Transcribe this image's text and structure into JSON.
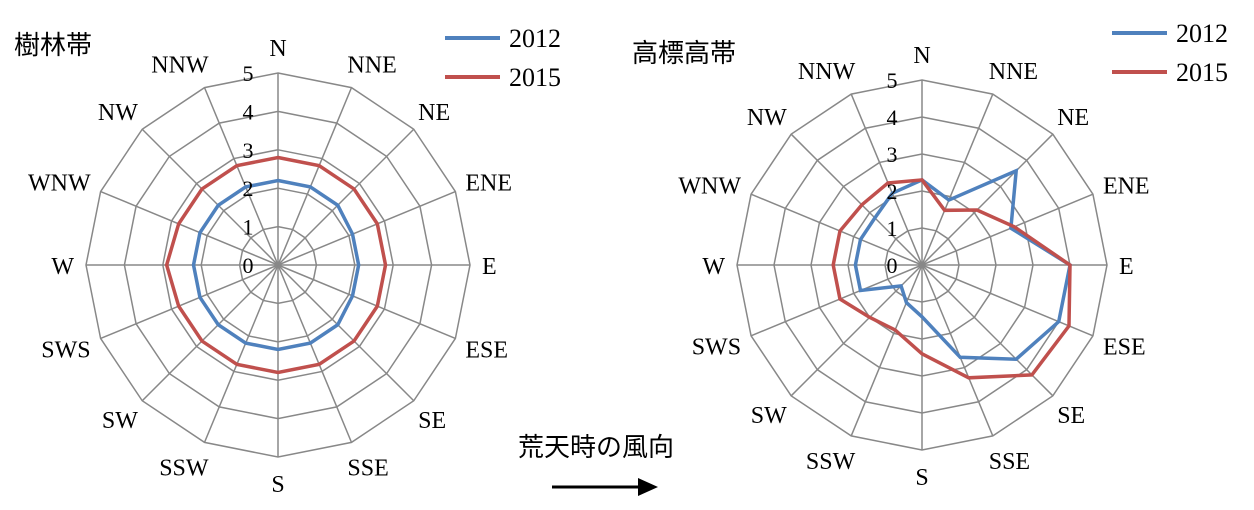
{
  "chart_data": [
    {
      "type": "radar",
      "title": "樹林帯",
      "directions": [
        "N",
        "NNE",
        "NE",
        "ENE",
        "E",
        "ESE",
        "SE",
        "SSE",
        "S",
        "SSW",
        "SW",
        "SWS",
        "W",
        "WNW",
        "NW",
        "NNW"
      ],
      "rlim": [
        0,
        5
      ],
      "ticks": [
        "0",
        "1",
        "2",
        "3",
        "4",
        "5"
      ],
      "legend_position": "top-right",
      "series": [
        {
          "name": "2012",
          "color": "#4F81BD",
          "values": [
            2.2,
            2.2,
            2.2,
            2.1,
            2.1,
            2.1,
            2.2,
            2.2,
            2.2,
            2.2,
            2.2,
            2.2,
            2.2,
            2.2,
            2.2,
            2.2
          ]
        },
        {
          "name": "2015",
          "color": "#C0504D",
          "values": [
            2.8,
            2.8,
            2.8,
            2.8,
            2.8,
            2.8,
            2.8,
            2.8,
            2.8,
            2.8,
            2.8,
            2.8,
            2.9,
            2.8,
            2.8,
            2.8
          ]
        }
      ]
    },
    {
      "type": "radar",
      "title": "高標高帯",
      "directions": [
        "N",
        "NNE",
        "NE",
        "ENE",
        "E",
        "ESE",
        "SE",
        "SSE",
        "S",
        "SSW",
        "SW",
        "SWS",
        "W",
        "WNW",
        "NW",
        "NNW"
      ],
      "rlim": [
        0,
        5
      ],
      "ticks": [
        "0",
        "1",
        "2",
        "3",
        "4",
        "5"
      ],
      "legend_position": "top-right",
      "series": [
        {
          "name": "2012",
          "color": "#4F81BD",
          "values": [
            2.3,
            1.9,
            3.6,
            2.6,
            4.0,
            4.0,
            3.6,
            2.7,
            1.4,
            1.1,
            0.8,
            1.8,
            1.8,
            1.8,
            1.8,
            2.1
          ]
        },
        {
          "name": "2015",
          "color": "#C0504D",
          "values": [
            2.3,
            1.6,
            2.1,
            2.7,
            4.0,
            4.3,
            4.2,
            3.3,
            2.4,
            1.9,
            2.0,
            2.4,
            2.4,
            2.4,
            2.3,
            2.4
          ]
        }
      ]
    }
  ],
  "annotation": {
    "text": "荒天時の風向"
  }
}
